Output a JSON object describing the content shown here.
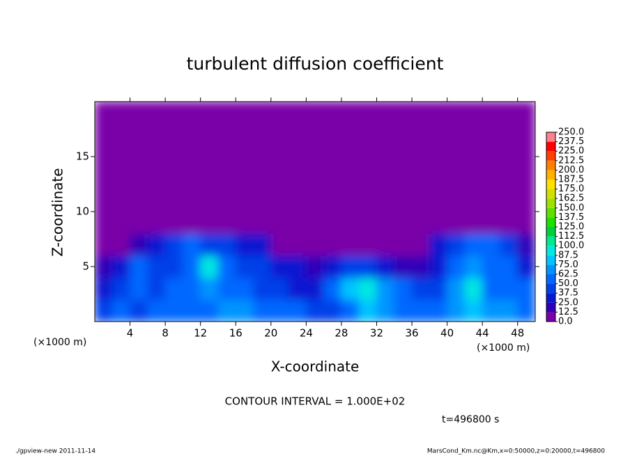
{
  "chart_data": {
    "type": "heatmap",
    "title": "turbulent diffusion coefficient",
    "xlabel": "X-coordinate",
    "ylabel": "Z-coordinate",
    "x_unit": "(×1000 m)",
    "annotations": [
      "CONTOUR INTERVAL = 1.000E+02",
      "t=496800 s"
    ],
    "footer_left": "./gpview-new  2011-11-14",
    "footer_right": "MarsCond_Km.nc@Km,x=0:50000,z=0:20000,t=496800",
    "xlim": [
      0,
      50
    ],
    "ylim": [
      0,
      20
    ],
    "xticks": [
      4,
      8,
      12,
      16,
      20,
      24,
      28,
      32,
      36,
      40,
      44,
      48
    ],
    "yticks": [
      5,
      10,
      15
    ],
    "x": [
      1,
      3,
      5,
      7,
      9,
      11,
      13,
      15,
      17,
      19,
      21,
      23,
      25,
      27,
      29,
      31,
      33,
      35,
      37,
      39,
      41,
      43,
      45,
      47,
      49
    ],
    "y": [
      1,
      3,
      5,
      7,
      9,
      11,
      13,
      15,
      17,
      19
    ],
    "z": [
      [
        45,
        50,
        40,
        55,
        50,
        55,
        60,
        70,
        65,
        55,
        50,
        50,
        40,
        45,
        60,
        80,
        70,
        55,
        50,
        55,
        65,
        80,
        70,
        65,
        55
      ],
      [
        30,
        40,
        60,
        45,
        50,
        55,
        70,
        55,
        50,
        45,
        40,
        35,
        30,
        60,
        75,
        95,
        70,
        50,
        40,
        45,
        65,
        90,
        60,
        55,
        50
      ],
      [
        20,
        25,
        55,
        40,
        45,
        55,
        90,
        50,
        45,
        40,
        35,
        25,
        15,
        30,
        40,
        45,
        30,
        20,
        20,
        35,
        55,
        65,
        60,
        55,
        35
      ],
      [
        0,
        0,
        15,
        30,
        40,
        50,
        45,
        40,
        35,
        30,
        10,
        5,
        5,
        10,
        10,
        10,
        5,
        5,
        10,
        30,
        45,
        55,
        55,
        45,
        20
      ],
      [
        0,
        0,
        0,
        0,
        0,
        5,
        5,
        0,
        0,
        0,
        0,
        0,
        0,
        0,
        0,
        0,
        0,
        0,
        0,
        0,
        0,
        5,
        10,
        0,
        0
      ],
      [
        0,
        0,
        0,
        0,
        0,
        0,
        0,
        0,
        0,
        0,
        0,
        0,
        0,
        0,
        0,
        0,
        0,
        0,
        0,
        0,
        0,
        0,
        0,
        0,
        0
      ],
      [
        0,
        0,
        0,
        0,
        0,
        0,
        0,
        0,
        0,
        0,
        0,
        0,
        0,
        0,
        0,
        0,
        0,
        0,
        0,
        0,
        0,
        0,
        0,
        0,
        0
      ],
      [
        0,
        0,
        0,
        0,
        0,
        0,
        0,
        0,
        0,
        0,
        0,
        0,
        0,
        0,
        0,
        0,
        0,
        0,
        0,
        0,
        0,
        0,
        0,
        0,
        0
      ],
      [
        0,
        0,
        0,
        0,
        0,
        0,
        0,
        0,
        0,
        0,
        0,
        0,
        0,
        0,
        0,
        0,
        0,
        0,
        0,
        0,
        0,
        0,
        0,
        0,
        0
      ],
      [
        0,
        0,
        0,
        0,
        0,
        0,
        0,
        0,
        0,
        0,
        0,
        0,
        0,
        0,
        0,
        0,
        0,
        0,
        0,
        0,
        0,
        0,
        0,
        0,
        0
      ]
    ],
    "colorbar": {
      "levels": [
        {
          "value": 0,
          "label": "0.0"
        },
        {
          "value": 12.5,
          "label": "12.5"
        },
        {
          "value": 25,
          "label": "25.0"
        },
        {
          "value": 37.5,
          "label": "37.5"
        },
        {
          "value": 50,
          "label": "50.0"
        },
        {
          "value": 62.5,
          "label": "62.5"
        },
        {
          "value": 75,
          "label": "75.0"
        },
        {
          "value": 87.5,
          "label": "87.5"
        },
        {
          "value": 100,
          "label": "100.0"
        },
        {
          "value": 112.5,
          "label": "112.5"
        },
        {
          "value": 125,
          "label": "125.0"
        },
        {
          "value": 137.5,
          "label": "137.5"
        },
        {
          "value": 150,
          "label": "150.0"
        },
        {
          "value": 162.5,
          "label": "162.5"
        },
        {
          "value": 175,
          "label": "175.0"
        },
        {
          "value": 187.5,
          "label": "187.5"
        },
        {
          "value": 200,
          "label": "200.0"
        },
        {
          "value": 212.5,
          "label": "212.5"
        },
        {
          "value": 225,
          "label": "225.0"
        },
        {
          "value": 237.5,
          "label": "237.5"
        },
        {
          "value": 250,
          "label": "250.0"
        }
      ],
      "colors": [
        "#7a00a8",
        "#3000b8",
        "#0818d0",
        "#0040e8",
        "#0068ff",
        "#0094ff",
        "#00c4ff",
        "#00e8e0",
        "#00e890",
        "#00d040",
        "#20e000",
        "#60e000",
        "#a0e000",
        "#d0e000",
        "#ffe000",
        "#ffb000",
        "#ff8000",
        "#ff4000",
        "#ff0000",
        "#ff8090"
      ]
    }
  }
}
